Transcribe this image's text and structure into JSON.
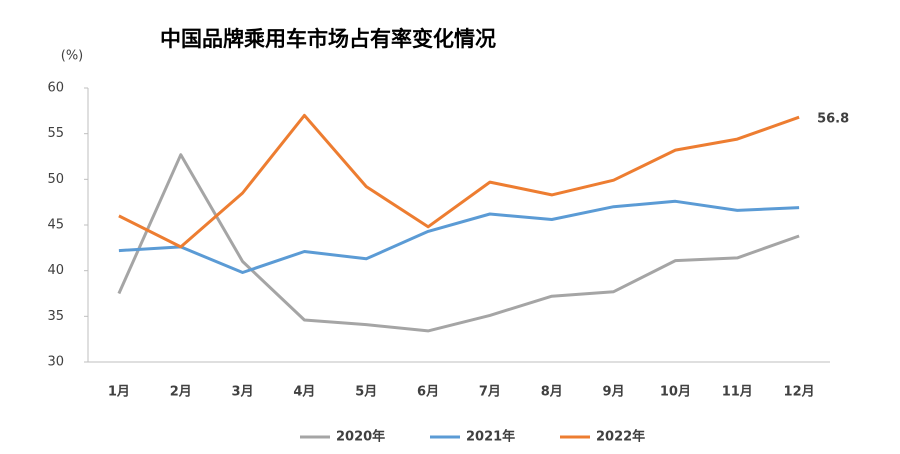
{
  "chart_data": {
    "type": "line",
    "title": "中国品牌乘用车市场占有率变化情况",
    "y_label": "(%)",
    "categories": [
      "1月",
      "2月",
      "3月",
      "4月",
      "5月",
      "6月",
      "7月",
      "8月",
      "9月",
      "10月",
      "11月",
      "12月"
    ],
    "series": [
      {
        "name": "2020年",
        "color": "#a5a5a5",
        "values": [
          37.5,
          52.7,
          41.0,
          34.6,
          34.1,
          33.4,
          35.1,
          37.2,
          37.7,
          41.1,
          41.4,
          43.8
        ]
      },
      {
        "name": "2021年",
        "color": "#5b9bd5",
        "values": [
          42.2,
          42.6,
          39.8,
          42.1,
          41.3,
          44.3,
          46.2,
          45.6,
          47.0,
          47.6,
          46.6,
          46.9
        ]
      },
      {
        "name": "2022年",
        "color": "#ed7d31",
        "values": [
          46.0,
          42.6,
          48.5,
          57.0,
          49.2,
          44.8,
          49.7,
          48.3,
          49.9,
          53.2,
          54.4,
          56.8
        ]
      }
    ],
    "ylim": [
      30,
      60
    ],
    "yticks": [
      30,
      35,
      40,
      45,
      50,
      55,
      60
    ],
    "grid": false,
    "legend": "bottom"
  }
}
